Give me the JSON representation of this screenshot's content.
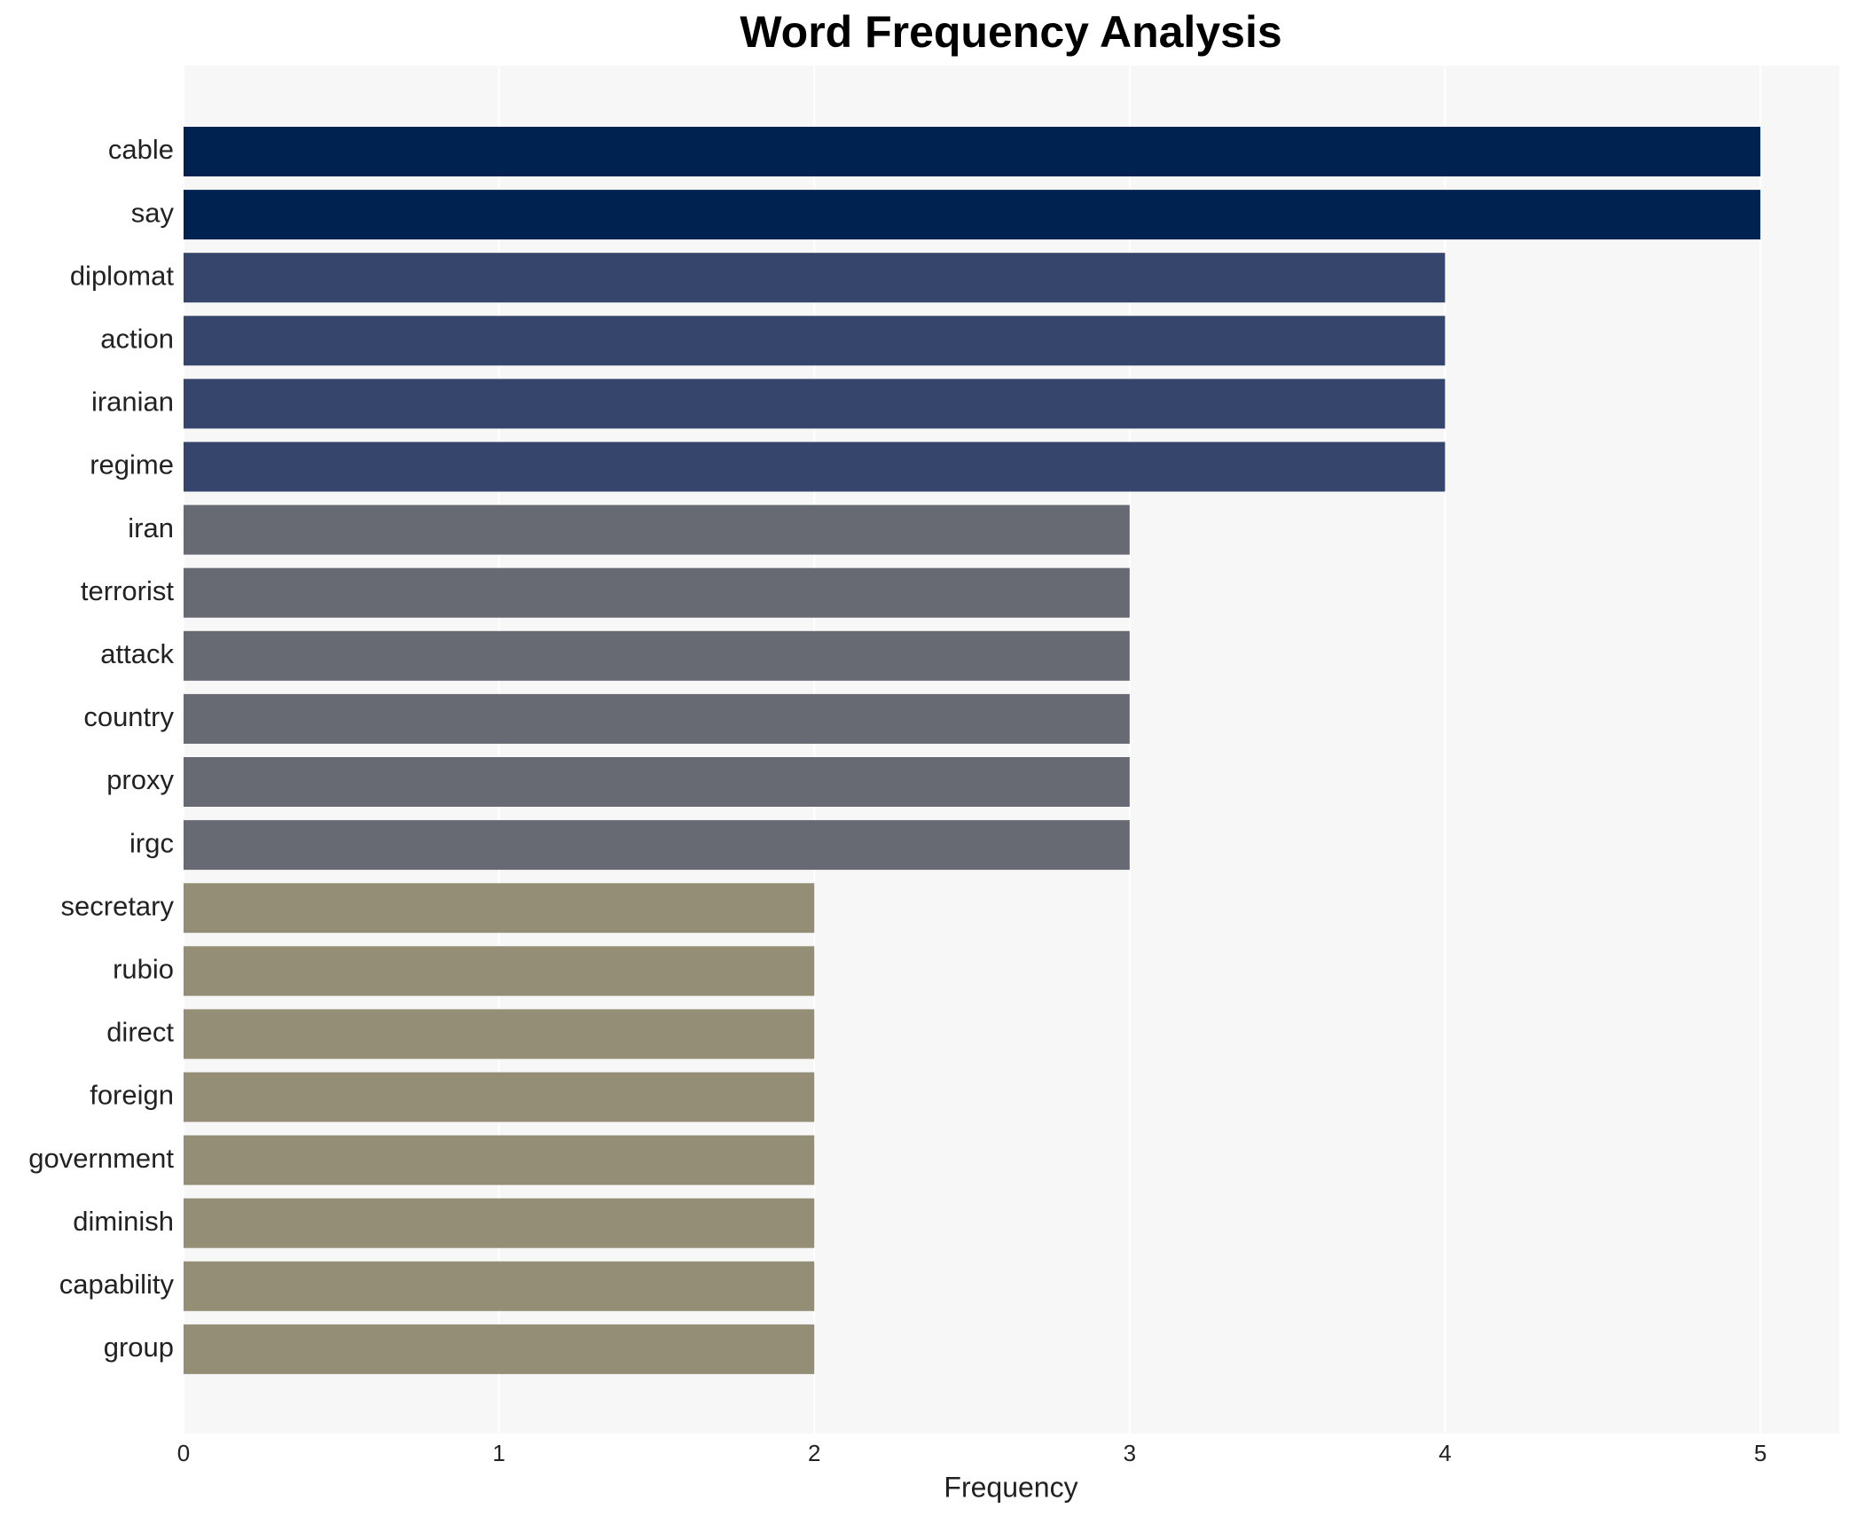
{
  "chart_data": {
    "type": "hbar",
    "title": "Word Frequency Analysis",
    "x_label": "Frequency",
    "categories": [
      "cable",
      "say",
      "diplomat",
      "action",
      "iranian",
      "regime",
      "iran",
      "terrorist",
      "attack",
      "country",
      "proxy",
      "irgc",
      "secretary",
      "rubio",
      "direct",
      "foreign",
      "government",
      "diminish",
      "capability",
      "group"
    ],
    "values": [
      5,
      5,
      4,
      4,
      4,
      4,
      3,
      3,
      3,
      3,
      3,
      3,
      2,
      2,
      2,
      2,
      2,
      2,
      2,
      2
    ],
    "colors": [
      "#002251",
      "#002251",
      "#36456c",
      "#36456c",
      "#36456c",
      "#36456c",
      "#676a72",
      "#676a72",
      "#676a72",
      "#676a72",
      "#676a72",
      "#676a72",
      "#958e77",
      "#958e77",
      "#958e77",
      "#958e77",
      "#958e77",
      "#958e77",
      "#958e77",
      "#958e77"
    ],
    "xlim": [
      0,
      5.25
    ],
    "xticks": [
      0,
      1,
      2,
      3,
      4,
      5
    ],
    "grid": true
  }
}
